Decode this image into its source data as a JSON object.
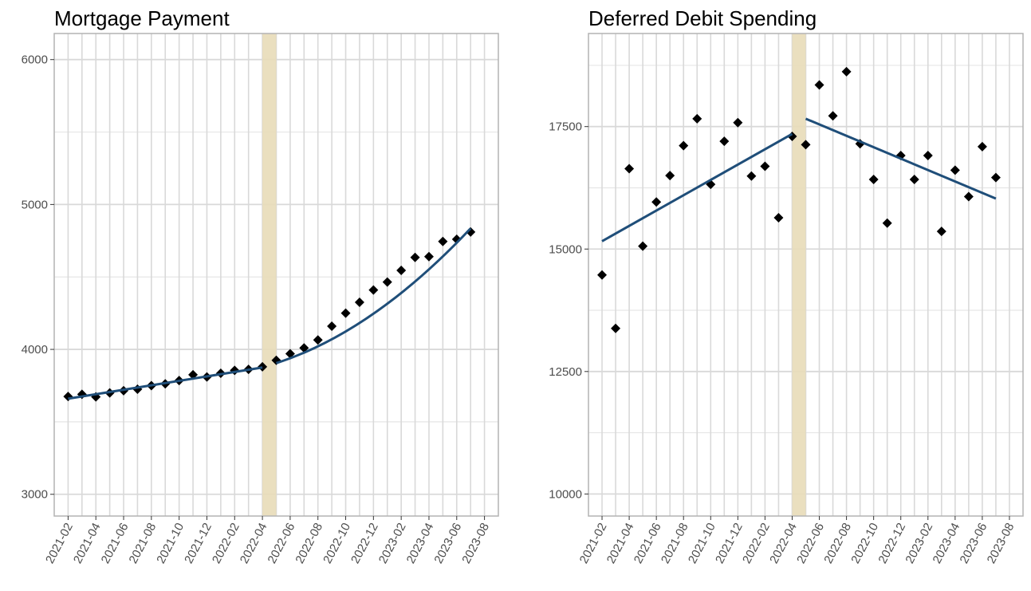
{
  "colors": {
    "points": "#000000",
    "trend": "#1f4e79",
    "highlight": "#e8dcb8",
    "grid_major": "#d9d9d9",
    "grid_minor": "#e6e6e6",
    "panel_border": "#b3b3b3"
  },
  "chart_data": [
    {
      "type": "scatter",
      "title": "Mortgage Payment",
      "xlabel": "",
      "ylabel": "",
      "x_range": [
        "2021-01",
        "2023-09"
      ],
      "ylim": [
        2850,
        6180
      ],
      "y_ticks": [
        3000,
        4000,
        5000,
        6000
      ],
      "y_tick_labels": [
        "3000",
        "4000",
        "5000",
        "6000"
      ],
      "x_tick_labels": [
        "2021-02",
        "2021-04",
        "2021-06",
        "2021-08",
        "2021-10",
        "2021-12",
        "2022-02",
        "2022-04",
        "2022-06",
        "2022-08",
        "2022-10",
        "2022-12",
        "2023-02",
        "2023-04",
        "2023-06",
        "2023-08"
      ],
      "highlight_band": [
        "2022-04",
        "2022-05"
      ],
      "grid": true,
      "points": [
        {
          "x": "2021-02",
          "y": 3675
        },
        {
          "x": "2021-03",
          "y": 3690
        },
        {
          "x": "2021-04",
          "y": 3672
        },
        {
          "x": "2021-05",
          "y": 3700
        },
        {
          "x": "2021-06",
          "y": 3715
        },
        {
          "x": "2021-07",
          "y": 3725
        },
        {
          "x": "2021-08",
          "y": 3750
        },
        {
          "x": "2021-09",
          "y": 3762
        },
        {
          "x": "2021-10",
          "y": 3785
        },
        {
          "x": "2021-11",
          "y": 3825
        },
        {
          "x": "2021-12",
          "y": 3810
        },
        {
          "x": "2022-01",
          "y": 3835
        },
        {
          "x": "2022-02",
          "y": 3855
        },
        {
          "x": "2022-03",
          "y": 3862
        },
        {
          "x": "2022-04",
          "y": 3880
        },
        {
          "x": "2022-05",
          "y": 3925
        },
        {
          "x": "2022-06",
          "y": 3970
        },
        {
          "x": "2022-07",
          "y": 4010
        },
        {
          "x": "2022-08",
          "y": 4065
        },
        {
          "x": "2022-09",
          "y": 4160
        },
        {
          "x": "2022-10",
          "y": 4250
        },
        {
          "x": "2022-11",
          "y": 4325
        },
        {
          "x": "2022-12",
          "y": 4410
        },
        {
          "x": "2023-01",
          "y": 4465
        },
        {
          "x": "2023-02",
          "y": 4545
        },
        {
          "x": "2023-03",
          "y": 4635
        },
        {
          "x": "2023-04",
          "y": 4640
        },
        {
          "x": "2023-05",
          "y": 4745
        },
        {
          "x": "2023-06",
          "y": 4760
        },
        {
          "x": "2023-07",
          "y": 4810
        }
      ],
      "trend_segments": [
        {
          "x": [
            "2021-02",
            "2022-04"
          ],
          "y": [
            3660,
            3875
          ]
        },
        {
          "x": [
            "2022-05",
            "2023-07"
          ],
          "y": [
            3905,
            4835
          ]
        }
      ],
      "trend_curvature": [
        0,
        45
      ]
    },
    {
      "type": "scatter",
      "title": "Deferred Debit Spending",
      "xlabel": "",
      "ylabel": "",
      "x_range": [
        "2021-01",
        "2023-09"
      ],
      "ylim": [
        9550,
        19400
      ],
      "y_ticks": [
        10000,
        12500,
        15000,
        17500
      ],
      "y_tick_labels": [
        "10000",
        "12500",
        "15000",
        "17500"
      ],
      "x_tick_labels": [
        "2021-02",
        "2021-04",
        "2021-06",
        "2021-08",
        "2021-10",
        "2021-12",
        "2022-02",
        "2022-04",
        "2022-06",
        "2022-08",
        "2022-10",
        "2022-12",
        "2023-02",
        "2023-04",
        "2023-06",
        "2023-08"
      ],
      "highlight_band": [
        "2022-04",
        "2022-05"
      ],
      "grid": true,
      "points": [
        {
          "x": "2021-02",
          "y": 14470
        },
        {
          "x": "2021-03",
          "y": 13380
        },
        {
          "x": "2021-04",
          "y": 16640
        },
        {
          "x": "2021-05",
          "y": 15060
        },
        {
          "x": "2021-06",
          "y": 15960
        },
        {
          "x": "2021-07",
          "y": 16500
        },
        {
          "x": "2021-08",
          "y": 17110
        },
        {
          "x": "2021-09",
          "y": 17660
        },
        {
          "x": "2021-10",
          "y": 16320
        },
        {
          "x": "2021-11",
          "y": 17200
        },
        {
          "x": "2021-12",
          "y": 17580
        },
        {
          "x": "2022-01",
          "y": 16490
        },
        {
          "x": "2022-02",
          "y": 16690
        },
        {
          "x": "2022-03",
          "y": 15640
        },
        {
          "x": "2022-04",
          "y": 17300
        },
        {
          "x": "2022-05",
          "y": 17130
        },
        {
          "x": "2022-06",
          "y": 18350
        },
        {
          "x": "2022-07",
          "y": 17720
        },
        {
          "x": "2022-08",
          "y": 18620
        },
        {
          "x": "2022-09",
          "y": 17150
        },
        {
          "x": "2022-10",
          "y": 16420
        },
        {
          "x": "2022-11",
          "y": 15530
        },
        {
          "x": "2022-12",
          "y": 16910
        },
        {
          "x": "2023-01",
          "y": 16420
        },
        {
          "x": "2023-02",
          "y": 16910
        },
        {
          "x": "2023-03",
          "y": 15360
        },
        {
          "x": "2023-04",
          "y": 16610
        },
        {
          "x": "2023-05",
          "y": 16070
        },
        {
          "x": "2023-06",
          "y": 17090
        },
        {
          "x": "2023-07",
          "y": 16460
        }
      ],
      "trend_segments": [
        {
          "x": [
            "2021-02",
            "2022-04"
          ],
          "y": [
            15160,
            17350
          ]
        },
        {
          "x": [
            "2022-05",
            "2023-07"
          ],
          "y": [
            17660,
            16030
          ]
        }
      ],
      "trend_curvature": [
        0,
        0
      ]
    }
  ]
}
